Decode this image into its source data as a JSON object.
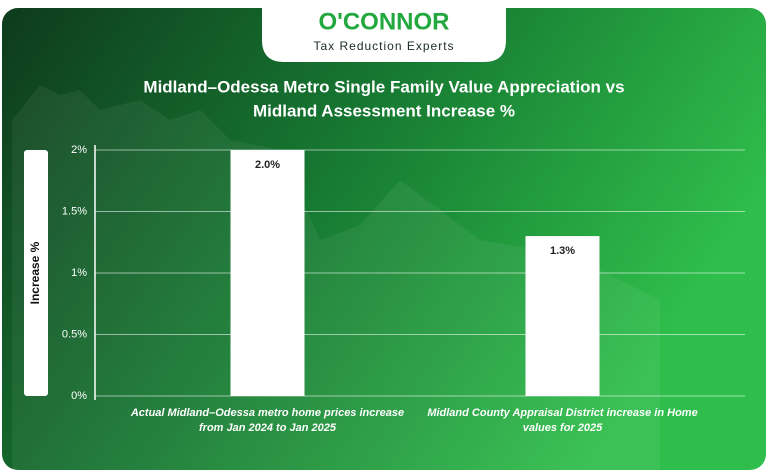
{
  "logo": {
    "name": "O'CONNOR",
    "tagline": "Tax Reduction Experts"
  },
  "chart_data": {
    "type": "bar",
    "title": [
      "Midland–Odessa Metro Single Family Value Appreciation vs",
      "Midland Assessment Increase %"
    ],
    "y_label": "Increase %",
    "categories": [
      "Actual Midland–Odessa metro home prices increase from Jan 2024 to Jan 2025",
      "Midland County Appraisal District increase in Home values for 2025"
    ],
    "values": [
      2.0,
      1.3
    ],
    "value_labels": [
      "2.0%",
      "1.3%"
    ],
    "color": "#ffffff",
    "ylim": [
      0,
      2
    ],
    "yticks": [
      {
        "value": 0,
        "label": "0%"
      },
      {
        "value": 0.5,
        "label": "0.5%"
      },
      {
        "value": 1,
        "label": "1%"
      },
      {
        "value": 1.5,
        "label": "1.5%"
      },
      {
        "value": 2,
        "label": "2%"
      }
    ],
    "grid": true
  }
}
